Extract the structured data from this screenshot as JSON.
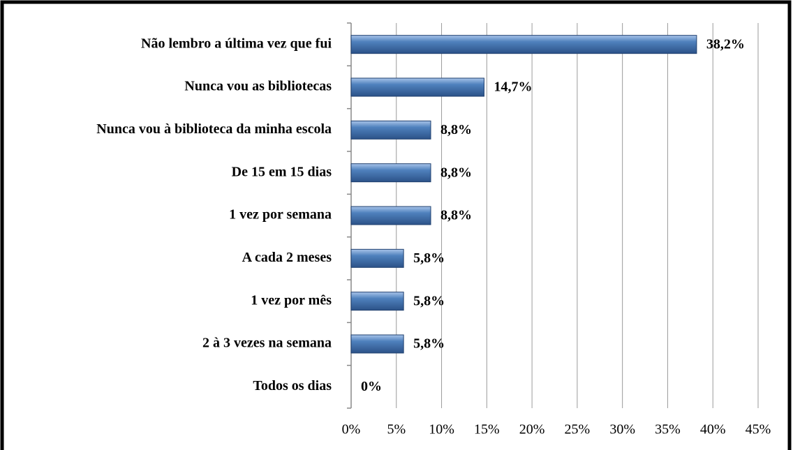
{
  "chart_data": {
    "type": "bar",
    "orientation": "horizontal",
    "categories": [
      "Não lembro a última vez que fui",
      "Nunca vou as bibliotecas",
      "Nunca vou à biblioteca da minha escola",
      "De 15 em 15 dias",
      "1 vez por semana",
      "A cada 2 meses",
      "1 vez por mês",
      "2 à 3 vezes na semana",
      "Todos os dias"
    ],
    "values": [
      38.2,
      14.7,
      8.8,
      8.8,
      8.8,
      5.8,
      5.8,
      5.8,
      0
    ],
    "value_labels": [
      "38,2%",
      "14,7%",
      "8,8%",
      "8,8%",
      "8,8%",
      "5,8%",
      "5,8%",
      "5,8%",
      "0%"
    ],
    "color": "#4f81bd",
    "xlim": [
      0,
      45
    ],
    "xticks": [
      {
        "value": 0,
        "label": "0%"
      },
      {
        "value": 5,
        "label": "5%"
      },
      {
        "value": 10,
        "label": "10%"
      },
      {
        "value": 15,
        "label": "15%"
      },
      {
        "value": 20,
        "label": "20%"
      },
      {
        "value": 25,
        "label": "25%"
      },
      {
        "value": 30,
        "label": "30%"
      },
      {
        "value": 35,
        "label": "35%"
      },
      {
        "value": 40,
        "label": "40%"
      },
      {
        "value": 45,
        "label": "45%"
      }
    ],
    "grid": true
  }
}
